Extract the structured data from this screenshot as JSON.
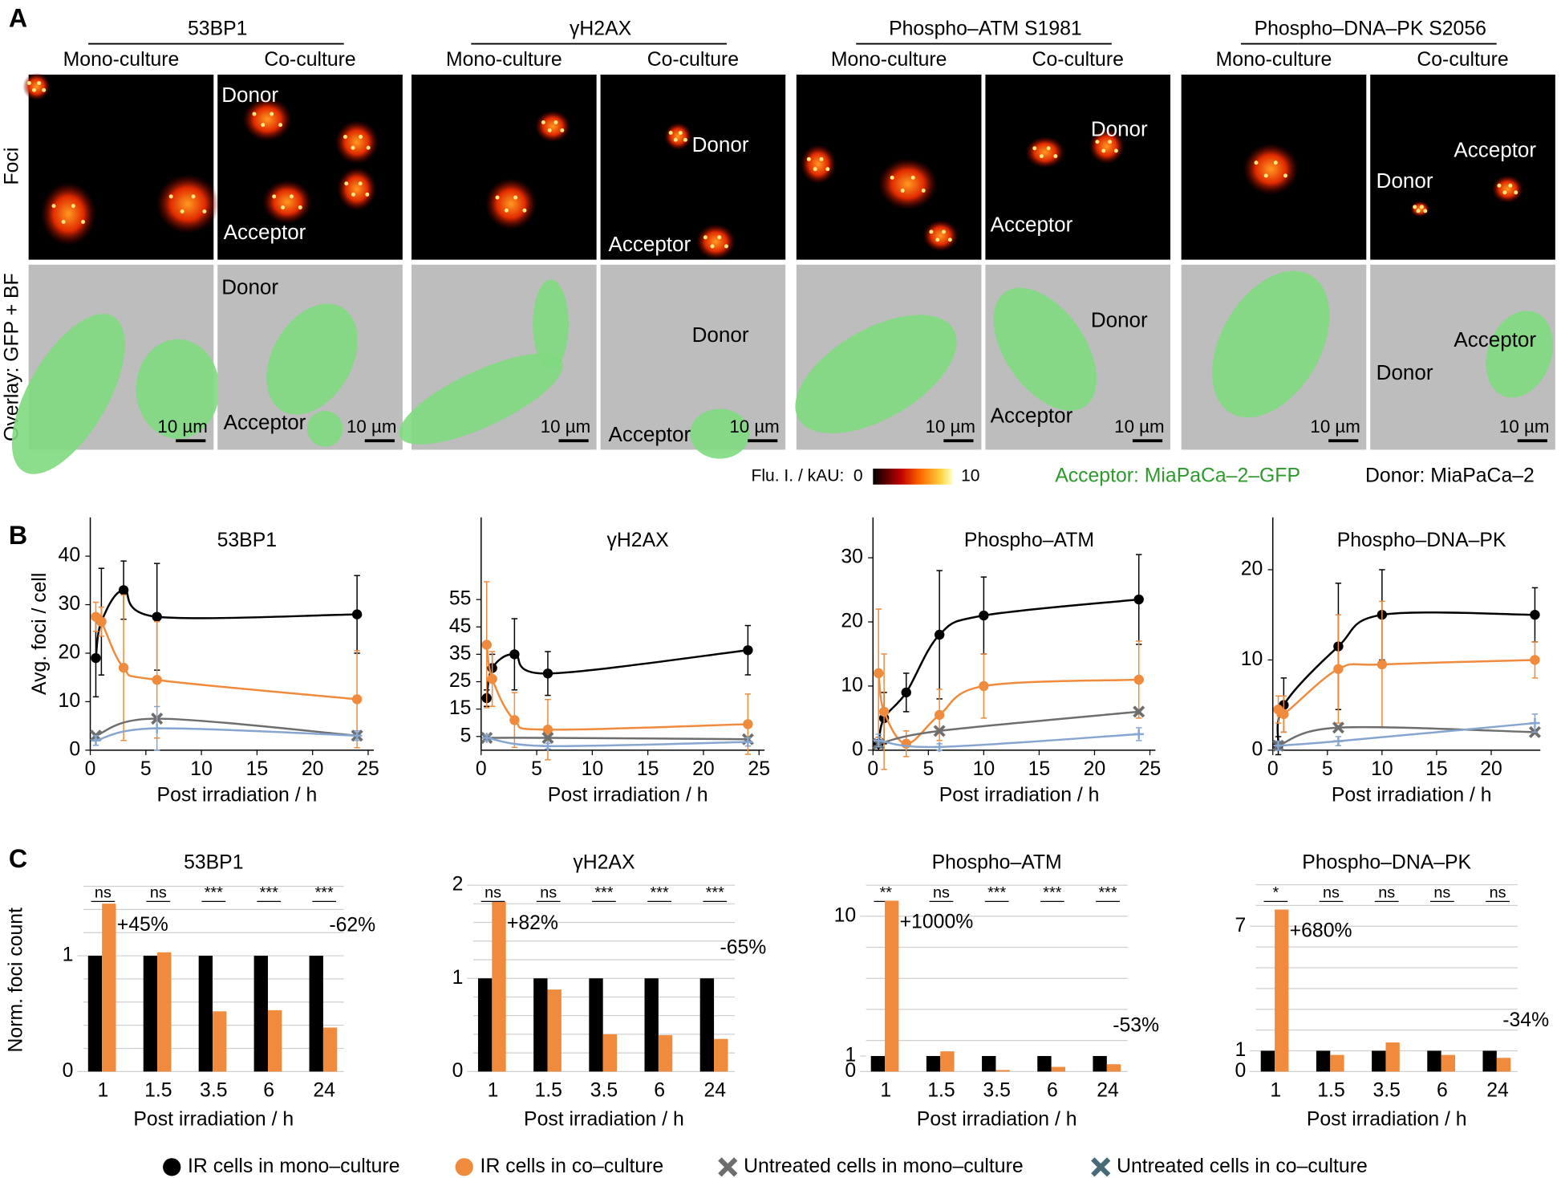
{
  "panel_letters": [
    "A",
    "B",
    "C"
  ],
  "panel_a": {
    "row_labels": [
      "Foci",
      "Overlay: GFP + BF"
    ],
    "groups": [
      {
        "title": "53BP1",
        "columns": [
          "Mono-culture",
          "Co-culture"
        ],
        "tiles": [
          [],
          [
            "Donor",
            "Acceptor"
          ],
          [
            "10 µm"
          ],
          [
            "Donor",
            "Acceptor",
            "10 µm"
          ]
        ]
      },
      {
        "title": "γH2AX",
        "columns": [
          "Mono-culture",
          "Co-culture"
        ],
        "tiles": [
          [],
          [
            "Donor",
            "Acceptor"
          ],
          [
            "10 µm"
          ],
          [
            "Donor",
            "Acceptor",
            "10 µm"
          ]
        ]
      },
      {
        "title": "Phospho–ATM S1981",
        "columns": [
          "Mono-culture",
          "Co-culture"
        ],
        "tiles": [
          [],
          [
            "Donor",
            "Acceptor"
          ],
          [
            "10 µm"
          ],
          [
            "Donor",
            "Acceptor",
            "10 µm"
          ]
        ]
      },
      {
        "title": "Phospho–DNA–PK S2056",
        "columns": [
          "Mono-culture",
          "Co-culture"
        ],
        "tiles": [
          [],
          [
            "Acceptor",
            "Donor"
          ],
          [
            "10 µm"
          ],
          [
            "Acceptor",
            "Donor",
            "10 µm"
          ]
        ]
      }
    ],
    "colorbar": {
      "label": "Flu. I. / kAU:",
      "min": 0,
      "max": 10
    },
    "acceptor": "Acceptor: MiaPaCa–2–GFP",
    "donor": "Donor: MiaPaCa–2"
  },
  "chart_data": [
    {
      "type": "line",
      "title": "53BP1",
      "xlabel": "Post irradiation / h",
      "ylabel": "Avg. foci / cell",
      "xlim": [
        0,
        25.5
      ],
      "xticks": [
        0,
        5,
        10,
        15,
        20,
        25
      ],
      "ylim": [
        0,
        48
      ],
      "yticks": [
        0,
        10,
        20,
        30,
        40
      ],
      "series": [
        {
          "name": "IR cells in mono–culture",
          "color": "#000000",
          "marker": "circle",
          "x": [
            0.5,
            1,
            3,
            6,
            24
          ],
          "values": [
            19,
            26.5,
            33,
            27.5,
            28
          ],
          "errors": [
            8,
            11,
            6,
            11,
            8
          ]
        },
        {
          "name": "IR cells in co–culture",
          "color": "#f08a3c",
          "marker": "circle",
          "x": [
            0.5,
            1,
            3,
            6,
            24
          ],
          "values": [
            27.5,
            26.5,
            17,
            14.5,
            10.5
          ],
          "errors": [
            3,
            3,
            15,
            12,
            10
          ]
        },
        {
          "name": "Untreated cells in mono–culture",
          "color": "#6e6e6e",
          "marker": "x",
          "x": [
            0.5,
            6,
            24
          ],
          "values": [
            3,
            6.5,
            3
          ]
        },
        {
          "name": "Untreated cells in co–culture",
          "color": "#86a6d0",
          "legend_color": "#466a78",
          "marker": "plus",
          "x": [
            0.5,
            6,
            24
          ],
          "values": [
            2,
            4.5,
            3
          ],
          "errors": [
            1,
            4.5,
            1
          ]
        }
      ]
    },
    {
      "type": "line",
      "title": "γH2AX",
      "xlabel": "Post irradiation / h",
      "xlim": [
        0,
        25.5
      ],
      "xticks": [
        0,
        5,
        10,
        15,
        20,
        25
      ],
      "ylim": [
        0,
        85
      ],
      "yticks": [
        5,
        15,
        25,
        35,
        45,
        55
      ],
      "series": [
        {
          "color": "#000000",
          "marker": "circle",
          "x": [
            0.5,
            1,
            3,
            6,
            24
          ],
          "values": [
            19,
            30,
            35,
            28,
            36.5
          ],
          "errors": [
            3,
            5,
            13,
            8,
            9
          ]
        },
        {
          "color": "#f08a3c",
          "marker": "circle",
          "x": [
            0.5,
            1,
            3,
            6,
            24
          ],
          "values": [
            38.5,
            26,
            11,
            7.5,
            9.5
          ],
          "errors": [
            23,
            10,
            10,
            11,
            11
          ]
        },
        {
          "color": "#6e6e6e",
          "marker": "x",
          "x": [
            0.5,
            6,
            24
          ],
          "values": [
            4.5,
            4.5,
            4
          ]
        },
        {
          "color": "#86a6d0",
          "marker": "plus",
          "x": [
            0.5,
            6,
            24
          ],
          "values": [
            4.5,
            1.5,
            3
          ],
          "errors": [
            1,
            1,
            1.5
          ]
        }
      ]
    },
    {
      "type": "line",
      "title": "Phospho–ATM",
      "xlabel": "Post irradiation / h",
      "xlim": [
        0,
        25.5
      ],
      "xticks": [
        0,
        5,
        10,
        15,
        20,
        25
      ],
      "ylim": [
        0,
        36.3
      ],
      "yticks": [
        0,
        10,
        20,
        30
      ],
      "series": [
        {
          "color": "#000000",
          "marker": "circle",
          "x": [
            0.5,
            1,
            3,
            6,
            10,
            24
          ],
          "values": [
            1,
            5,
            9,
            18,
            21,
            23.5
          ],
          "errors": [
            1,
            4,
            3,
            10,
            6,
            7
          ]
        },
        {
          "color": "#f08a3c",
          "marker": "circle",
          "x": [
            0.5,
            1,
            3,
            6,
            10,
            24
          ],
          "values": [
            12,
            6,
            1,
            5.5,
            10,
            11
          ],
          "errors": [
            10,
            9,
            2,
            4,
            5,
            6
          ]
        },
        {
          "color": "#6e6e6e",
          "marker": "x",
          "x": [
            0.5,
            6,
            24
          ],
          "values": [
            1,
            3,
            6
          ]
        },
        {
          "color": "#86a6d0",
          "marker": "plus",
          "x": [
            0.5,
            6,
            24
          ],
          "values": [
            1.5,
            0.5,
            2.5
          ],
          "errors": [
            1,
            0.5,
            1
          ]
        }
      ]
    },
    {
      "type": "line",
      "title": "Phospho–DNA–PK",
      "xlabel": "Post irradiation / h",
      "xlim": [
        0,
        24.5
      ],
      "xticks": [
        0,
        5,
        10,
        15,
        20
      ],
      "ylim": [
        0,
        25.8
      ],
      "yticks": [
        0,
        10,
        20
      ],
      "series": [
        {
          "color": "#000000",
          "marker": "circle",
          "x": [
            0.5,
            1,
            6,
            10,
            24
          ],
          "values": [
            0.5,
            5,
            11.5,
            15,
            15
          ],
          "errors": [
            1,
            3,
            7,
            5,
            3
          ]
        },
        {
          "color": "#f08a3c",
          "marker": "circle",
          "x": [
            0.5,
            1,
            6,
            10,
            24
          ],
          "values": [
            4.5,
            4,
            9,
            9.5,
            10
          ],
          "errors": [
            1.5,
            2,
            6,
            7,
            2
          ]
        },
        {
          "color": "#6e6e6e",
          "marker": "x",
          "x": [
            0.5,
            6,
            24
          ],
          "values": [
            0.5,
            2.5,
            2
          ]
        },
        {
          "color": "#86a6d0",
          "marker": "plus",
          "x": [
            0.5,
            6,
            24
          ],
          "values": [
            0.5,
            1,
            3
          ],
          "errors": [
            0.5,
            0.5,
            1
          ]
        }
      ]
    },
    {
      "type": "bar",
      "title": "53BP1",
      "xlabel": "Post irradiation / h",
      "ylabel": "Norm. foci count",
      "categories": [
        "1",
        "1.5",
        "3.5",
        "6",
        "24"
      ],
      "ylim": [
        0,
        1.65
      ],
      "yticks": [
        0,
        1
      ],
      "ygrid": [
        0.2,
        0.4,
        0.6,
        0.8,
        1,
        1.2,
        1.4,
        1.6
      ],
      "significance": [
        "ns",
        "ns",
        "***",
        "***",
        "***"
      ],
      "annotations": [
        "+45%",
        "-62%"
      ],
      "series": [
        {
          "color": "#000000",
          "values": [
            1,
            1,
            1,
            1,
            1
          ]
        },
        {
          "color": "#f08a3c",
          "values": [
            1.45,
            1.03,
            0.52,
            0.53,
            0.38
          ]
        }
      ]
    },
    {
      "type": "bar",
      "title": "γH2AX",
      "xlabel": "Post irradiation / h",
      "categories": [
        "1",
        "1.5",
        "3.5",
        "6",
        "24"
      ],
      "ylim": [
        0,
        2.05
      ],
      "yticks": [
        0,
        1,
        2
      ],
      "ygrid": [
        0.2,
        0.4,
        0.6,
        0.8,
        1,
        1.2,
        1.4,
        1.6,
        1.8,
        2
      ],
      "significance": [
        "ns",
        "ns",
        "***",
        "***",
        "***"
      ],
      "annotations": [
        "+82%",
        "-65%"
      ],
      "series": [
        {
          "color": "#000000",
          "values": [
            1,
            1,
            1,
            1,
            1
          ]
        },
        {
          "color": "#f08a3c",
          "values": [
            1.82,
            0.88,
            0.4,
            0.39,
            0.35
          ]
        }
      ]
    },
    {
      "type": "bar",
      "title": "Phospho–ATM",
      "xlabel": "Post irradiation / h",
      "categories": [
        "1",
        "1.5",
        "3.5",
        "6",
        "24"
      ],
      "ylim": [
        0,
        12.3
      ],
      "yticks": [
        0,
        1,
        10
      ],
      "ygrid": [
        2,
        4,
        6,
        8,
        10,
        12
      ],
      "significance": [
        "**",
        "ns",
        "***",
        "***",
        "***"
      ],
      "annotations": [
        "+1000%",
        "-53%"
      ],
      "series": [
        {
          "color": "#000000",
          "values": [
            1,
            1,
            1,
            1,
            1
          ]
        },
        {
          "color": "#f08a3c",
          "values": [
            11,
            1.3,
            0.1,
            0.3,
            0.47
          ]
        }
      ]
    },
    {
      "type": "bar",
      "title": "Phospho–DNA–PK",
      "xlabel": "Post irradiation / h",
      "categories": [
        "1",
        "1.5",
        "3.5",
        "6",
        "24"
      ],
      "ylim": [
        0,
        9.2
      ],
      "yticks": [
        0,
        1,
        7
      ],
      "ygrid": [
        1,
        2,
        3,
        4,
        5,
        6,
        7,
        8,
        9
      ],
      "significance": [
        "*",
        "ns",
        "ns",
        "ns",
        "ns"
      ],
      "annotations": [
        "+680%",
        "-34%"
      ],
      "series": [
        {
          "color": "#000000",
          "values": [
            1,
            1,
            1,
            1,
            1
          ]
        },
        {
          "color": "#f08a3c",
          "values": [
            7.8,
            0.8,
            1.4,
            0.8,
            0.66
          ]
        }
      ]
    }
  ]
}
